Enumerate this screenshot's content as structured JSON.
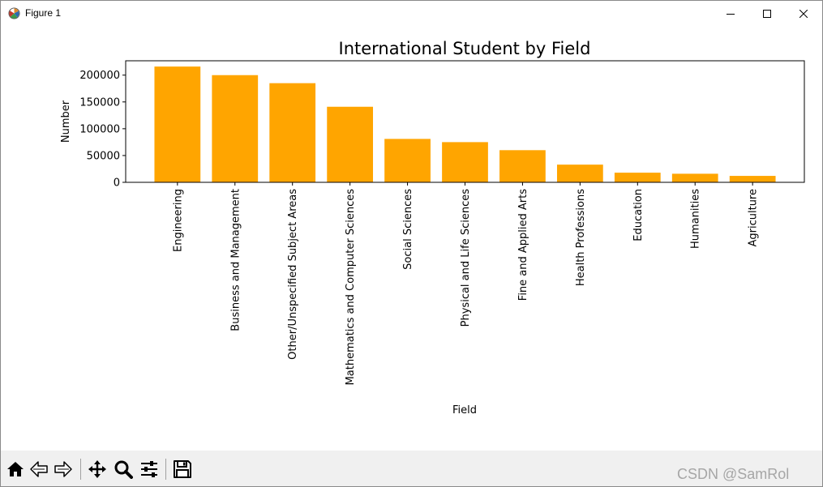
{
  "window": {
    "title": "Figure 1",
    "app_icon": "matplotlib-icon",
    "controls": {
      "minimize": "minimize-icon",
      "maximize": "maximize-icon",
      "close": "close-icon"
    }
  },
  "chart_data": {
    "type": "bar",
    "title": "International Student by Field",
    "xlabel": "Field",
    "ylabel": "Number",
    "categories": [
      "Engineering",
      "Business and Management",
      "Other/Unspecified Subject Areas",
      "Mathematics and Computer Sciences",
      "Social Sciences",
      "Physical and Life Sciences",
      "Fine and Applied Arts",
      "Health Professions",
      "Education",
      "Humanities",
      "Agriculture"
    ],
    "values": [
      216000,
      200000,
      185000,
      141000,
      81000,
      75000,
      60000,
      33000,
      18000,
      16000,
      12000
    ],
    "ylim": [
      0,
      226800
    ],
    "yticks": [
      0,
      50000,
      100000,
      150000,
      200000
    ],
    "ytick_labels": [
      "0",
      "50000",
      "100000",
      "150000",
      "200000"
    ],
    "bar_color": "#ffa500",
    "grid": false,
    "x_tick_rotation": "vertical"
  },
  "toolbar": {
    "items": [
      {
        "name": "home-button",
        "icon": "home-icon"
      },
      {
        "name": "back-button",
        "icon": "back-arrow-icon"
      },
      {
        "name": "forward-button",
        "icon": "forward-arrow-icon"
      },
      {
        "name": "pan-button",
        "icon": "move-icon"
      },
      {
        "name": "zoom-button",
        "icon": "zoom-icon"
      },
      {
        "name": "configure-subplots-button",
        "icon": "sliders-icon"
      },
      {
        "name": "save-button",
        "icon": "save-icon"
      }
    ]
  },
  "watermark": "CSDN @SamRol"
}
